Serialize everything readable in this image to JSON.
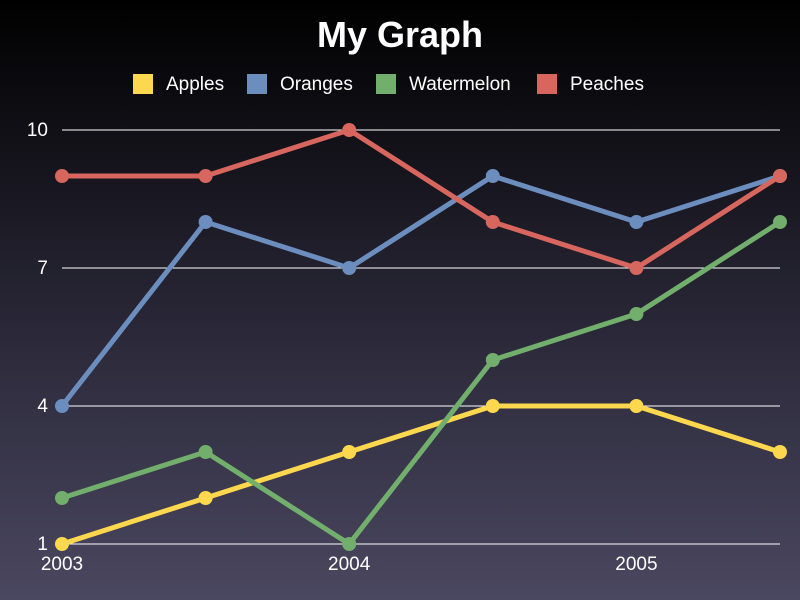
{
  "chart_data": {
    "type": "line",
    "title": "My Graph",
    "xlabel": "",
    "ylabel": "",
    "x_tick_labels": [
      "2003",
      "2004",
      "2005"
    ],
    "y_ticks": [
      1,
      4,
      7,
      10
    ],
    "x_range": [
      2003,
      2005.5
    ],
    "ylim": [
      1,
      10
    ],
    "grid": "horizontal",
    "legend_position": "top",
    "x": [
      2003,
      2003.5,
      2004,
      2004.5,
      2005,
      2005.5
    ],
    "series": [
      {
        "name": "Apples",
        "color": "#fdd84e",
        "values": [
          1,
          2,
          3,
          4,
          4,
          3
        ]
      },
      {
        "name": "Oranges",
        "color": "#6c8ebf",
        "values": [
          4,
          8,
          7,
          9,
          8,
          9
        ]
      },
      {
        "name": "Watermelon",
        "color": "#72ae6c",
        "values": [
          2,
          3,
          1,
          5,
          6,
          8
        ]
      },
      {
        "name": "Peaches",
        "color": "#d7665e",
        "values": [
          9,
          9,
          10,
          8,
          7,
          9
        ]
      }
    ]
  }
}
